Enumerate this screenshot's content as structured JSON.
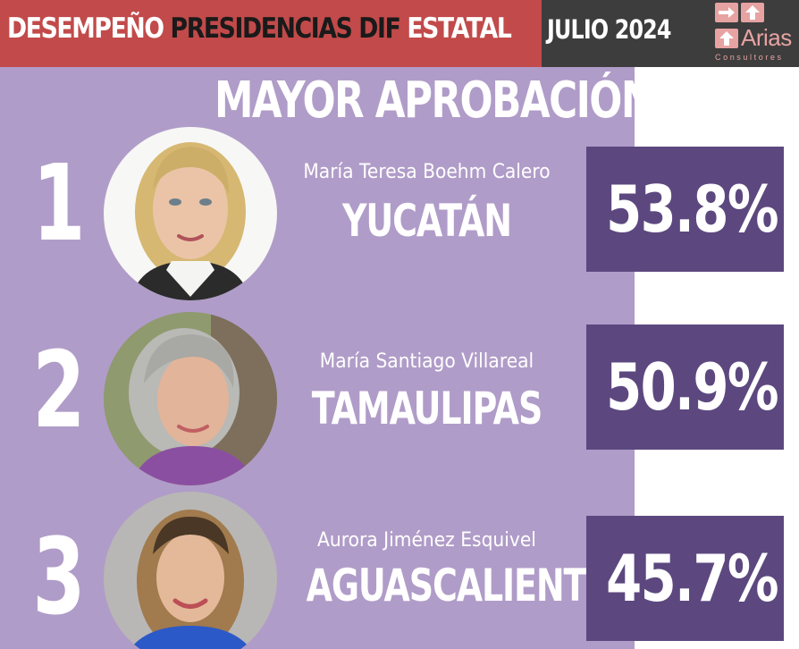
{
  "header": {
    "title_part1": "DESEMPEÑO ",
    "title_part2": "PRESIDENCIAS DIF ",
    "title_part3": "ESTATAL",
    "date": "JULIO 2024",
    "logo": {
      "name": "Arias",
      "subtitle": "Consultores",
      "icons": [
        "arrow-right-icon",
        "arrow-up-icon"
      ]
    }
  },
  "subtitle": "MAYOR APROBACIÓN",
  "ranking": [
    {
      "rank": "1",
      "name": "María Teresa Boehm Calero",
      "state": "YUCATÁN",
      "approval": "53.8%"
    },
    {
      "rank": "2",
      "name": "María Santiago Villareal",
      "state": "TAMAULIPAS",
      "approval": "50.9%"
    },
    {
      "rank": "3",
      "name": "Aurora Jiménez Esquivel",
      "state": "AGUASCALIENTES",
      "approval": "45.7%"
    }
  ],
  "colors": {
    "header_red": "#c24a4a",
    "header_dark": "#3d3d3d",
    "panel_purple": "#b09cc8",
    "score_purple": "#5c487f",
    "logo_pink": "#e7a2a2"
  }
}
